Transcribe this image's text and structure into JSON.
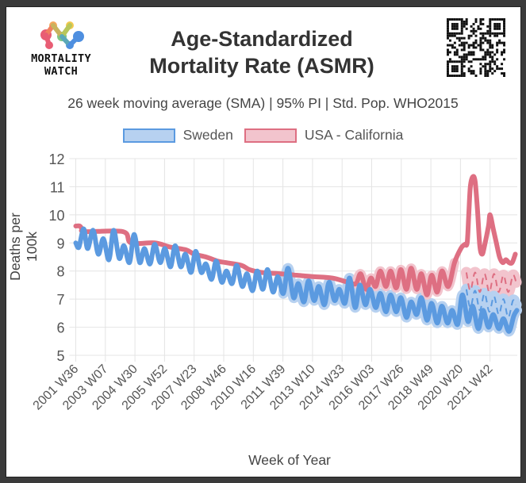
{
  "header": {
    "logo_text_line1": "MORTALITY",
    "logo_text_line2": "WATCH",
    "title_line1": "Age-Standardized",
    "title_line2": "Mortality Rate (ASMR)",
    "subtitle": "26 week moving average (SMA) | 95% PI | Std. Pop. WHO2015"
  },
  "colors": {
    "sweden": "#5b9ae0",
    "sweden_fill": "#b7d1f0",
    "california": "#de6f82",
    "california_fill": "#f2c4cd",
    "grid": "#e4e4e4",
    "text": "#555555"
  },
  "chart_data": {
    "type": "line",
    "title": "Age-Standardized Mortality Rate (ASMR)",
    "subtitle": "26 week moving average (SMA) | 95% PI | Std. Pop. WHO2015",
    "xlabel": "Week of Year",
    "ylabel": "Deaths per 100k",
    "ylim": [
      5,
      12
    ],
    "yticks": [
      5,
      6,
      7,
      8,
      9,
      10,
      11,
      12
    ],
    "xticks": [
      "2001 W36",
      "2003 W07",
      "2004 W30",
      "2005 W52",
      "2007 W23",
      "2008 W46",
      "2010 W16",
      "2011 W39",
      "2013 W10",
      "2014 W33",
      "2016 W03",
      "2017 W26",
      "2018 W49",
      "2020 W20",
      "2021 W42"
    ],
    "x_unit": "weeks since 2001 W36",
    "xtick_weeks": [
      0,
      75,
      150,
      225,
      300,
      375,
      450,
      525,
      600,
      675,
      750,
      825,
      900,
      975,
      1050
    ],
    "x_max_weeks": 1120,
    "grid": true,
    "legend": "top-center",
    "legend_entries": [
      "Sweden",
      "USA - California"
    ],
    "series": [
      {
        "name": "Sweden",
        "points": [
          [
            0,
            9.0
          ],
          [
            8,
            8.85
          ],
          [
            20,
            9.5
          ],
          [
            30,
            8.8
          ],
          [
            44,
            9.45
          ],
          [
            57,
            8.6
          ],
          [
            70,
            9.15
          ],
          [
            84,
            8.4
          ],
          [
            96,
            9.45
          ],
          [
            110,
            8.45
          ],
          [
            122,
            8.9
          ],
          [
            136,
            8.3
          ],
          [
            148,
            9.3
          ],
          [
            162,
            8.3
          ],
          [
            174,
            8.8
          ],
          [
            188,
            8.25
          ],
          [
            200,
            8.95
          ],
          [
            214,
            8.3
          ],
          [
            226,
            8.8
          ],
          [
            240,
            8.15
          ],
          [
            252,
            8.9
          ],
          [
            266,
            8.15
          ],
          [
            278,
            8.6
          ],
          [
            292,
            7.95
          ],
          [
            304,
            8.7
          ],
          [
            318,
            7.95
          ],
          [
            330,
            8.25
          ],
          [
            344,
            7.7
          ],
          [
            356,
            8.35
          ],
          [
            370,
            7.6
          ],
          [
            382,
            8.0
          ],
          [
            396,
            7.55
          ],
          [
            408,
            8.2
          ],
          [
            422,
            7.45
          ],
          [
            434,
            7.9
          ],
          [
            448,
            7.3
          ],
          [
            460,
            8.0
          ],
          [
            474,
            7.35
          ],
          [
            486,
            8.05
          ],
          [
            500,
            7.25
          ],
          [
            512,
            7.8
          ],
          [
            526,
            7.2
          ],
          [
            538,
            8.1
          ],
          [
            552,
            7.05
          ],
          [
            564,
            7.55
          ],
          [
            578,
            6.9
          ],
          [
            590,
            7.65
          ],
          [
            604,
            6.95
          ],
          [
            616,
            7.45
          ],
          [
            630,
            6.8
          ],
          [
            642,
            7.6
          ],
          [
            656,
            6.95
          ],
          [
            668,
            7.35
          ],
          [
            682,
            6.85
          ],
          [
            694,
            7.75
          ],
          [
            708,
            6.7
          ],
          [
            720,
            7.5
          ],
          [
            734,
            6.8
          ],
          [
            746,
            7.35
          ],
          [
            760,
            6.7
          ],
          [
            772,
            7.2
          ],
          [
            786,
            6.55
          ],
          [
            798,
            7.15
          ],
          [
            812,
            6.55
          ],
          [
            824,
            7.05
          ],
          [
            838,
            6.35
          ],
          [
            850,
            6.9
          ],
          [
            864,
            6.45
          ],
          [
            876,
            7.05
          ],
          [
            890,
            6.25
          ],
          [
            902,
            6.85
          ],
          [
            916,
            6.15
          ],
          [
            928,
            6.75
          ],
          [
            942,
            6.15
          ],
          [
            954,
            6.6
          ],
          [
            968,
            6.1
          ],
          [
            980,
            7.15
          ],
          [
            994,
            6.2
          ],
          [
            1006,
            6.75
          ],
          [
            1020,
            5.95
          ],
          [
            1032,
            6.6
          ],
          [
            1046,
            6.0
          ],
          [
            1058,
            6.45
          ],
          [
            1072,
            5.95
          ],
          [
            1084,
            6.3
          ],
          [
            1098,
            5.85
          ],
          [
            1110,
            6.4
          ],
          [
            1118,
            6.6
          ]
        ]
      },
      {
        "name": "USA - California",
        "points": [
          [
            0,
            9.6
          ],
          [
            10,
            9.6
          ],
          [
            16,
            9.5
          ],
          [
            24,
            9.4
          ],
          [
            120,
            9.4
          ],
          [
            140,
            9.0
          ],
          [
            200,
            9.0
          ],
          [
            240,
            8.85
          ],
          [
            280,
            8.75
          ],
          [
            300,
            8.6
          ],
          [
            330,
            8.5
          ],
          [
            360,
            8.35
          ],
          [
            380,
            8.3
          ],
          [
            420,
            8.2
          ],
          [
            440,
            8.05
          ],
          [
            470,
            7.95
          ],
          [
            520,
            7.9
          ],
          [
            560,
            7.85
          ],
          [
            600,
            7.8
          ],
          [
            650,
            7.75
          ],
          [
            690,
            7.6
          ],
          [
            710,
            7.55
          ],
          [
            722,
            7.9
          ],
          [
            736,
            7.35
          ],
          [
            748,
            7.75
          ],
          [
            760,
            7.45
          ],
          [
            772,
            8.0
          ],
          [
            786,
            7.45
          ],
          [
            798,
            8.0
          ],
          [
            812,
            7.4
          ],
          [
            824,
            8.05
          ],
          [
            838,
            7.35
          ],
          [
            850,
            8.1
          ],
          [
            864,
            7.35
          ],
          [
            876,
            7.9
          ],
          [
            890,
            7.15
          ],
          [
            902,
            7.85
          ],
          [
            916,
            7.25
          ],
          [
            928,
            8.0
          ],
          [
            944,
            7.45
          ],
          [
            960,
            8.3
          ],
          [
            976,
            8.8
          ],
          [
            986,
            8.95
          ],
          [
            992,
            9.0
          ],
          [
            996,
            10.0
          ],
          [
            1000,
            11.0
          ],
          [
            1006,
            11.35
          ],
          [
            1012,
            11.2
          ],
          [
            1018,
            10.2
          ],
          [
            1024,
            8.9
          ],
          [
            1030,
            8.6
          ],
          [
            1036,
            8.9
          ],
          [
            1046,
            9.6
          ],
          [
            1050,
            10.0
          ],
          [
            1058,
            9.5
          ],
          [
            1066,
            9.0
          ],
          [
            1074,
            8.5
          ],
          [
            1082,
            8.3
          ],
          [
            1090,
            8.4
          ],
          [
            1098,
            8.3
          ],
          [
            1106,
            8.3
          ],
          [
            1114,
            8.6
          ]
        ]
      },
      {
        "name": "USA - California (baseline)",
        "points": [
          [
            990,
            7.95
          ],
          [
            1000,
            7.3
          ],
          [
            1012,
            7.95
          ],
          [
            1024,
            7.25
          ],
          [
            1036,
            7.9
          ],
          [
            1048,
            7.25
          ],
          [
            1060,
            7.9
          ],
          [
            1072,
            7.25
          ],
          [
            1084,
            7.85
          ],
          [
            1096,
            7.25
          ],
          [
            1108,
            7.85
          ],
          [
            1116,
            7.6
          ]
        ]
      },
      {
        "name": "Sweden (baseline)",
        "points": [
          [
            990,
            7.35
          ],
          [
            1000,
            6.7
          ],
          [
            1012,
            7.3
          ],
          [
            1024,
            6.6
          ],
          [
            1036,
            7.2
          ],
          [
            1048,
            6.55
          ],
          [
            1060,
            7.1
          ],
          [
            1072,
            6.45
          ],
          [
            1084,
            7.0
          ],
          [
            1096,
            6.35
          ],
          [
            1108,
            6.95
          ],
          [
            1116,
            6.8
          ]
        ]
      }
    ]
  }
}
